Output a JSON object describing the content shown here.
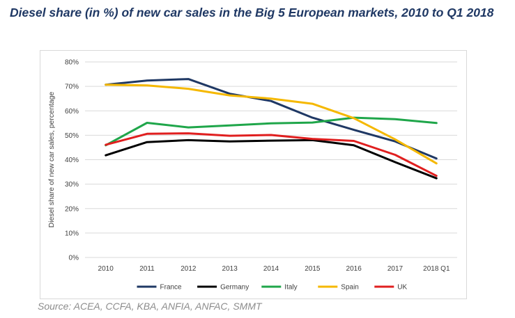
{
  "title": "Diesel share (in %) of new car sales in the Big 5 European markets, 2010 to Q1 2018",
  "source": "Source: ACEA, CCFA, KBA, ANFIA, ANFAC, SMMT",
  "chart_data": {
    "type": "line",
    "title": "Diesel share (in %) of new car sales in the Big 5 European markets, 2010 to Q1 2018",
    "xlabel": "",
    "ylabel": "Diesel share of new car sales, percentage",
    "ylim": [
      0,
      80
    ],
    "yticks": [
      {
        "value": 0,
        "label": "0%"
      },
      {
        "value": 10,
        "label": "10%"
      },
      {
        "value": 20,
        "label": "20%"
      },
      {
        "value": 30,
        "label": "30%"
      },
      {
        "value": 40,
        "label": "40%"
      },
      {
        "value": 50,
        "label": "50%"
      },
      {
        "value": 60,
        "label": "60%"
      },
      {
        "value": 70,
        "label": "70%"
      },
      {
        "value": 80,
        "label": "80%"
      }
    ],
    "grid": true,
    "legend_position": "bottom",
    "categories": [
      "2010",
      "2011",
      "2012",
      "2013",
      "2014",
      "2015",
      "2016",
      "2017",
      "2018 Q1"
    ],
    "series": [
      {
        "name": "France",
        "color": "#1f3864",
        "values": [
          70.7,
          72.4,
          73.0,
          67.0,
          64.0,
          57.2,
          52.2,
          47.5,
          40.5
        ]
      },
      {
        "name": "Germany",
        "color": "#000000",
        "values": [
          41.8,
          47.2,
          48.0,
          47.5,
          47.8,
          48.0,
          45.9,
          39.0,
          32.4
        ]
      },
      {
        "name": "Italy",
        "color": "#1fa64a",
        "values": [
          45.9,
          55.1,
          53.2,
          54.0,
          54.9,
          55.2,
          57.2,
          56.6,
          55.0
        ]
      },
      {
        "name": "Spain",
        "color": "#f5b800",
        "values": [
          70.7,
          70.4,
          69.0,
          66.3,
          65.0,
          62.9,
          57.0,
          48.3,
          38.5
        ]
      },
      {
        "name": "UK",
        "color": "#e01f1f",
        "values": [
          46.1,
          50.6,
          50.8,
          49.8,
          50.1,
          48.5,
          47.7,
          42.0,
          33.4
        ]
      }
    ]
  }
}
